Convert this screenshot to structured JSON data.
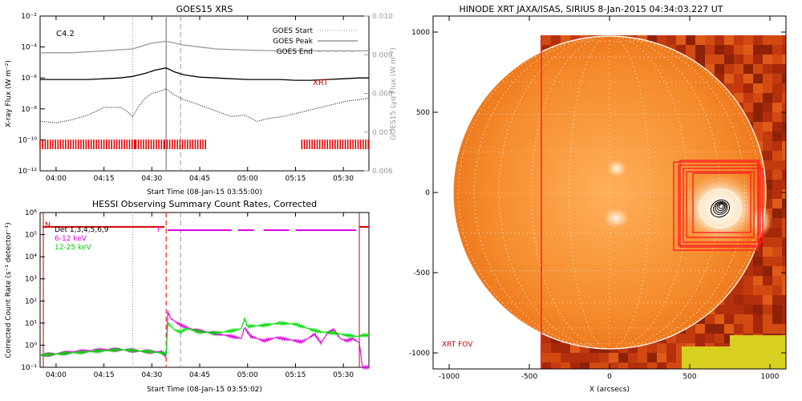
{
  "chart_data": [
    {
      "type": "line",
      "title": "GOES15 XRS",
      "xlabel": "Start Time (08-Jan-15 03:55:00)",
      "ylabel": "X-ray Flux (W m⁻²)",
      "ylabel2": "GOES15 Lyα Flux (W m⁻²)",
      "y_scale": "log",
      "ylim": [
        1e-12,
        0.01
      ],
      "y2lim": [
        0.006,
        0.01
      ],
      "x_ticks": [
        "04:00",
        "04:15",
        "04:30",
        "04:45",
        "05:00",
        "05:15",
        "05:30"
      ],
      "x_ticks_minutes": [
        5,
        20,
        35,
        50,
        65,
        80,
        95
      ],
      "xlim_minutes": [
        0,
        103
      ],
      "y_ticks": [
        "10⁻¹²",
        "10⁻¹⁰",
        "10⁻⁸",
        "10⁻⁶",
        "10⁻⁴",
        "10⁻²"
      ],
      "y2_ticks": [
        "0.006",
        "0.007",
        "0.008",
        "0.009",
        "0.010"
      ],
      "annotation": "C4.2",
      "xrt_label": "XRT",
      "legend": [
        "GOES Start",
        "GOES Peak",
        "GOES End"
      ],
      "legend_position": "top-right",
      "event_lines_minutes": {
        "start": 29,
        "peak": 39.5,
        "end": 44
      },
      "series": [
        {
          "name": "",
          "color": "#000000",
          "x": [
            0,
            5,
            10,
            15,
            20,
            25,
            29,
            33,
            36,
            39.5,
            42,
            45,
            50,
            55,
            60,
            65,
            70,
            75,
            80,
            85,
            90,
            95,
            100,
            103
          ],
          "y_log": [
            -6.1,
            -6.1,
            -6.1,
            -6.1,
            -6.05,
            -6.0,
            -5.9,
            -5.7,
            -5.5,
            -5.35,
            -5.6,
            -5.8,
            -5.95,
            -6.0,
            -6.05,
            -6.1,
            -6.1,
            -6.1,
            -6.15,
            -6.15,
            -6.1,
            -6.05,
            -6.0,
            -6.0
          ]
        },
        {
          "name": "",
          "color": "#000000",
          "dotted": true,
          "x": [
            0,
            5,
            10,
            15,
            20,
            25,
            27,
            29,
            31,
            33,
            35,
            37,
            39.5,
            42,
            45,
            48,
            52,
            56,
            60,
            64,
            68,
            72,
            76,
            80,
            84,
            88,
            92,
            96,
            100,
            103
          ],
          "y_log": [
            -8.8,
            -8.9,
            -8.7,
            -8.4,
            -7.9,
            -7.9,
            -8.1,
            -8.5,
            -7.8,
            -7.3,
            -7.0,
            -6.9,
            -6.7,
            -7.1,
            -7.4,
            -7.6,
            -7.9,
            -8.2,
            -8.5,
            -8.4,
            -8.8,
            -8.6,
            -8.5,
            -8.3,
            -8.1,
            -7.9,
            -7.7,
            -7.5,
            -7.4,
            -7.3
          ]
        },
        {
          "name": "",
          "color": "#999999",
          "axis": "y2",
          "x": [
            0,
            10,
            20,
            29,
            35,
            39.5,
            45,
            55,
            65,
            75,
            85,
            95,
            103
          ],
          "y": [
            0.00905,
            0.00905,
            0.0091,
            0.00915,
            0.0093,
            0.00935,
            0.00925,
            0.00915,
            0.00912,
            0.0091,
            0.0091,
            0.0091,
            0.0091
          ]
        }
      ],
      "xrt_coverage_minutes": [
        [
          0,
          30
        ],
        [
          30,
          39
        ],
        [
          39,
          52
        ],
        [
          82,
          103
        ]
      ]
    },
    {
      "type": "line",
      "title": "HESSI Observing Summary Count Rates, Corrected",
      "xlabel": "Start Time (08-Jan-15 03:55:02)",
      "ylabel": "Corrected Count Rate (s⁻¹ detector⁻¹)",
      "y_scale": "log",
      "ylim": [
        0.1,
        1000000.0
      ],
      "y_ticks": [
        "10⁻¹",
        "10⁰",
        "10¹",
        "10²",
        "10³",
        "10⁴",
        "10⁵",
        "10⁶"
      ],
      "x_ticks": [
        "04:00",
        "04:15",
        "04:30",
        "04:45",
        "05:00",
        "05:15",
        "05:30"
      ],
      "x_ticks_minutes": [
        5,
        20,
        35,
        50,
        65,
        80,
        95
      ],
      "xlim_minutes": [
        0,
        103
      ],
      "legend": [
        {
          "name": "Det 1,3,4,5,6,9",
          "color": "#000000"
        },
        {
          "name": "6-12 keV",
          "color": "#e000e0"
        },
        {
          "name": "12-25 keV",
          "color": "#00dd00"
        }
      ],
      "flags": {
        "night_label": "N",
        "flare_label": "F"
      },
      "event_lines_minutes": {
        "start": 29,
        "peak": 39.5,
        "end": 44
      },
      "series": [
        {
          "name": "6-12 keV",
          "color": "#e000e0",
          "x": [
            0,
            5,
            10,
            15,
            20,
            25,
            30,
            35,
            38,
            39.5,
            40,
            41,
            43,
            45,
            48,
            52,
            56,
            60,
            63,
            64,
            66,
            68,
            70,
            74,
            78,
            82,
            86,
            88,
            90,
            92,
            94,
            96,
            98,
            100,
            101,
            102,
            103
          ],
          "y_log": [
            -0.45,
            -0.4,
            -0.3,
            -0.25,
            -0.2,
            -0.2,
            -0.25,
            -0.3,
            -0.3,
            -0.5,
            1.5,
            1.2,
            1.0,
            0.85,
            0.7,
            0.6,
            0.5,
            0.4,
            0.3,
            0.8,
            0.4,
            0.3,
            0.2,
            0.35,
            0.25,
            0.15,
            0.5,
            0.1,
            0.55,
            0.7,
            0.3,
            0.2,
            0.3,
            0.1,
            -1.0,
            -1.0,
            -1.0
          ]
        },
        {
          "name": "12-25 keV",
          "color": "#00dd00",
          "x": [
            0,
            5,
            10,
            15,
            20,
            25,
            30,
            35,
            38,
            39.5,
            40,
            42,
            44,
            46,
            50,
            55,
            60,
            63,
            64,
            65,
            70,
            75,
            80,
            85,
            88,
            92,
            96,
            99,
            100,
            101,
            103
          ],
          "y_log": [
            -0.45,
            -0.4,
            -0.35,
            -0.3,
            -0.25,
            -0.2,
            -0.25,
            -0.3,
            -0.35,
            -0.4,
            1.0,
            0.7,
            0.6,
            0.75,
            0.6,
            0.55,
            0.65,
            0.75,
            1.2,
            0.85,
            0.9,
            1.0,
            0.95,
            0.7,
            0.6,
            0.55,
            0.45,
            0.4,
            0.4,
            0.45,
            0.45
          ]
        }
      ],
      "flag_line_log": 5.35,
      "flare_flag_log": 5.2
    },
    {
      "type": "heatmap",
      "title": "HINODE XRT JAXA/ISAS, SIRIUS   8-Jan-2015 04:34:03.227 UT",
      "xlabel": "X (arcsecs)",
      "ylabel": "",
      "xlim": [
        -1100,
        1100
      ],
      "ylim": [
        -1100,
        1100
      ],
      "x_ticks": [
        -1000,
        -500,
        0,
        500,
        1000
      ],
      "y_ticks": [
        -1000,
        -500,
        0,
        500,
        1000
      ],
      "annotation": "XRT FOV",
      "solar_radius_arcsec": 975,
      "contour_center": [
        690,
        -100
      ]
    }
  ]
}
